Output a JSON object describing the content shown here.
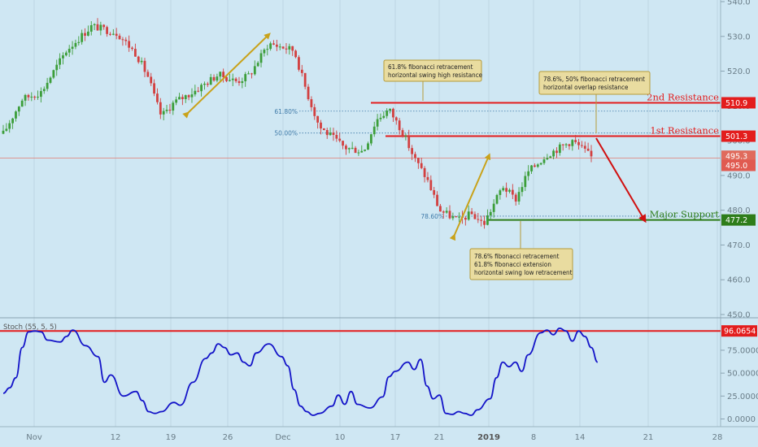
{
  "chart_data": [
    {
      "type": "candlestick",
      "title": "",
      "x_tick_labels": [
        "Nov",
        "12",
        "19",
        "26",
        "Dec",
        "10",
        "17",
        "21",
        "2019",
        "8",
        "14",
        "21",
        "28"
      ],
      "y_tick_labels": [
        "540.0",
        "530.0",
        "520.0",
        "510.0",
        "500.0",
        "490.0",
        "480.0",
        "470.0",
        "460.0",
        "450.0"
      ],
      "ylim": [
        449,
        542
      ],
      "grid": false,
      "price_path": [
        [
          0,
          502
        ],
        [
          3,
          512
        ],
        [
          6,
          514
        ],
        [
          10,
          526
        ],
        [
          14,
          533
        ],
        [
          18,
          531
        ],
        [
          21,
          525
        ],
        [
          23,
          518
        ],
        [
          24,
          512
        ],
        [
          25,
          507
        ],
        [
          27,
          511
        ],
        [
          30,
          514
        ],
        [
          34,
          519
        ],
        [
          37,
          517
        ],
        [
          39,
          519
        ],
        [
          42,
          528
        ],
        [
          44,
          527
        ],
        [
          46,
          526
        ],
        [
          48,
          514
        ],
        [
          50,
          504
        ],
        [
          52,
          501
        ],
        [
          54,
          498
        ],
        [
          57,
          497
        ],
        [
          59,
          506
        ],
        [
          61,
          509
        ],
        [
          63,
          503
        ],
        [
          65,
          495
        ],
        [
          67,
          489
        ],
        [
          69,
          480
        ],
        [
          72,
          477
        ],
        [
          74,
          479
        ],
        [
          76,
          476
        ],
        [
          79,
          487
        ],
        [
          81,
          483
        ],
        [
          83,
          491
        ],
        [
          86,
          496
        ],
        [
          88,
          498
        ],
        [
          90,
          500
        ],
        [
          92,
          497
        ],
        [
          93,
          495.3
        ]
      ],
      "current_price": 495.3,
      "current_price_line": 495.0,
      "levels": [
        {
          "name": "2nd Resistance",
          "price": 510.9,
          "color": "#e31d1d"
        },
        {
          "name": "1st Resistance",
          "price": 501.3,
          "color": "#e31d1d"
        },
        {
          "name": "Major Support",
          "price": 477.2,
          "color": "#2e7d1a"
        }
      ],
      "price_tags": [
        {
          "value": "510.9",
          "price": 510.9,
          "color": "#e31d1d"
        },
        {
          "value": "501.3",
          "price": 501.3,
          "color": "#e31d1d"
        },
        {
          "value": "495.3",
          "price": 495.3,
          "color": "#e06b5c"
        },
        {
          "value": "495.0",
          "price": 495.0,
          "color": "#e05a50"
        },
        {
          "value": "477.2",
          "price": 477.2,
          "color": "#2e7d1a"
        }
      ],
      "fib_labels": [
        {
          "text": "61.80%",
          "price": 508.5
        },
        {
          "text": "50.00%",
          "price": 502.2
        },
        {
          "text": "78.60%",
          "price": 478.3
        }
      ],
      "annotations": [
        {
          "lines": [
            "61.8% fibonacci retracement",
            "horizontal swing high resistance"
          ]
        },
        {
          "lines": [
            "78.6%, 50% fibonacci retracement",
            "horizontal overlap resistance"
          ]
        },
        {
          "lines": [
            "78.6% fibonacci retracement",
            "61.8% fibonacci extension",
            "horizontal swing low retracement"
          ]
        }
      ],
      "accent_colors": {
        "arrows": "#c9a21a",
        "note_bg": "#e9dca0",
        "note_border": "#b69b3a",
        "candle_up": "#3c9e3a",
        "candle_down": "#d24040"
      }
    },
    {
      "type": "line",
      "title": "Stoch (55, 5, 5)",
      "y_tick_labels": [
        "0.0000",
        "25.0000",
        "50.0000",
        "75.0000"
      ],
      "ylim": [
        -4,
        106
      ],
      "level_line": 96.0654,
      "level_tag": "96.0654",
      "series_color": "#1414c8",
      "points": [
        [
          0,
          28
        ],
        [
          1,
          34
        ],
        [
          2,
          45
        ],
        [
          3,
          78
        ],
        [
          4,
          95
        ],
        [
          5,
          96
        ],
        [
          6,
          95
        ],
        [
          7,
          86
        ],
        [
          9,
          84
        ],
        [
          10,
          90
        ],
        [
          11,
          97
        ],
        [
          13,
          80
        ],
        [
          15,
          68
        ],
        [
          16,
          40
        ],
        [
          17,
          48
        ],
        [
          19,
          25
        ],
        [
          21,
          30
        ],
        [
          22,
          20
        ],
        [
          23,
          8
        ],
        [
          24,
          6
        ],
        [
          25,
          8
        ],
        [
          27,
          18
        ],
        [
          28,
          15
        ],
        [
          30,
          40
        ],
        [
          32,
          66
        ],
        [
          33,
          72
        ],
        [
          34,
          82
        ],
        [
          35,
          78
        ],
        [
          36,
          70
        ],
        [
          37,
          72
        ],
        [
          38,
          62
        ],
        [
          39,
          58
        ],
        [
          40,
          72
        ],
        [
          42,
          82
        ],
        [
          44,
          68
        ],
        [
          45,
          58
        ],
        [
          46,
          32
        ],
        [
          47,
          14
        ],
        [
          48,
          8
        ],
        [
          49,
          4
        ],
        [
          50,
          6
        ],
        [
          52,
          14
        ],
        [
          53,
          26
        ],
        [
          54,
          16
        ],
        [
          55,
          30
        ],
        [
          56,
          16
        ],
        [
          58,
          12
        ],
        [
          60,
          24
        ],
        [
          61,
          46
        ],
        [
          62,
          52
        ],
        [
          64,
          62
        ],
        [
          65,
          54
        ],
        [
          66,
          65
        ],
        [
          67,
          36
        ],
        [
          68,
          22
        ],
        [
          69,
          26
        ],
        [
          70,
          6
        ],
        [
          71,
          5
        ],
        [
          72,
          8
        ],
        [
          73,
          6
        ],
        [
          74,
          4
        ],
        [
          75,
          10
        ],
        [
          77,
          22
        ],
        [
          78,
          45
        ],
        [
          79,
          62
        ],
        [
          80,
          57
        ],
        [
          81,
          62
        ],
        [
          82,
          52
        ],
        [
          83,
          70
        ],
        [
          85,
          94
        ],
        [
          86,
          97
        ],
        [
          87,
          92
        ],
        [
          88,
          99
        ],
        [
          89,
          96
        ],
        [
          90,
          85
        ],
        [
          91,
          96
        ],
        [
          92,
          90
        ],
        [
          93,
          78
        ],
        [
          94,
          62
        ]
      ]
    }
  ]
}
